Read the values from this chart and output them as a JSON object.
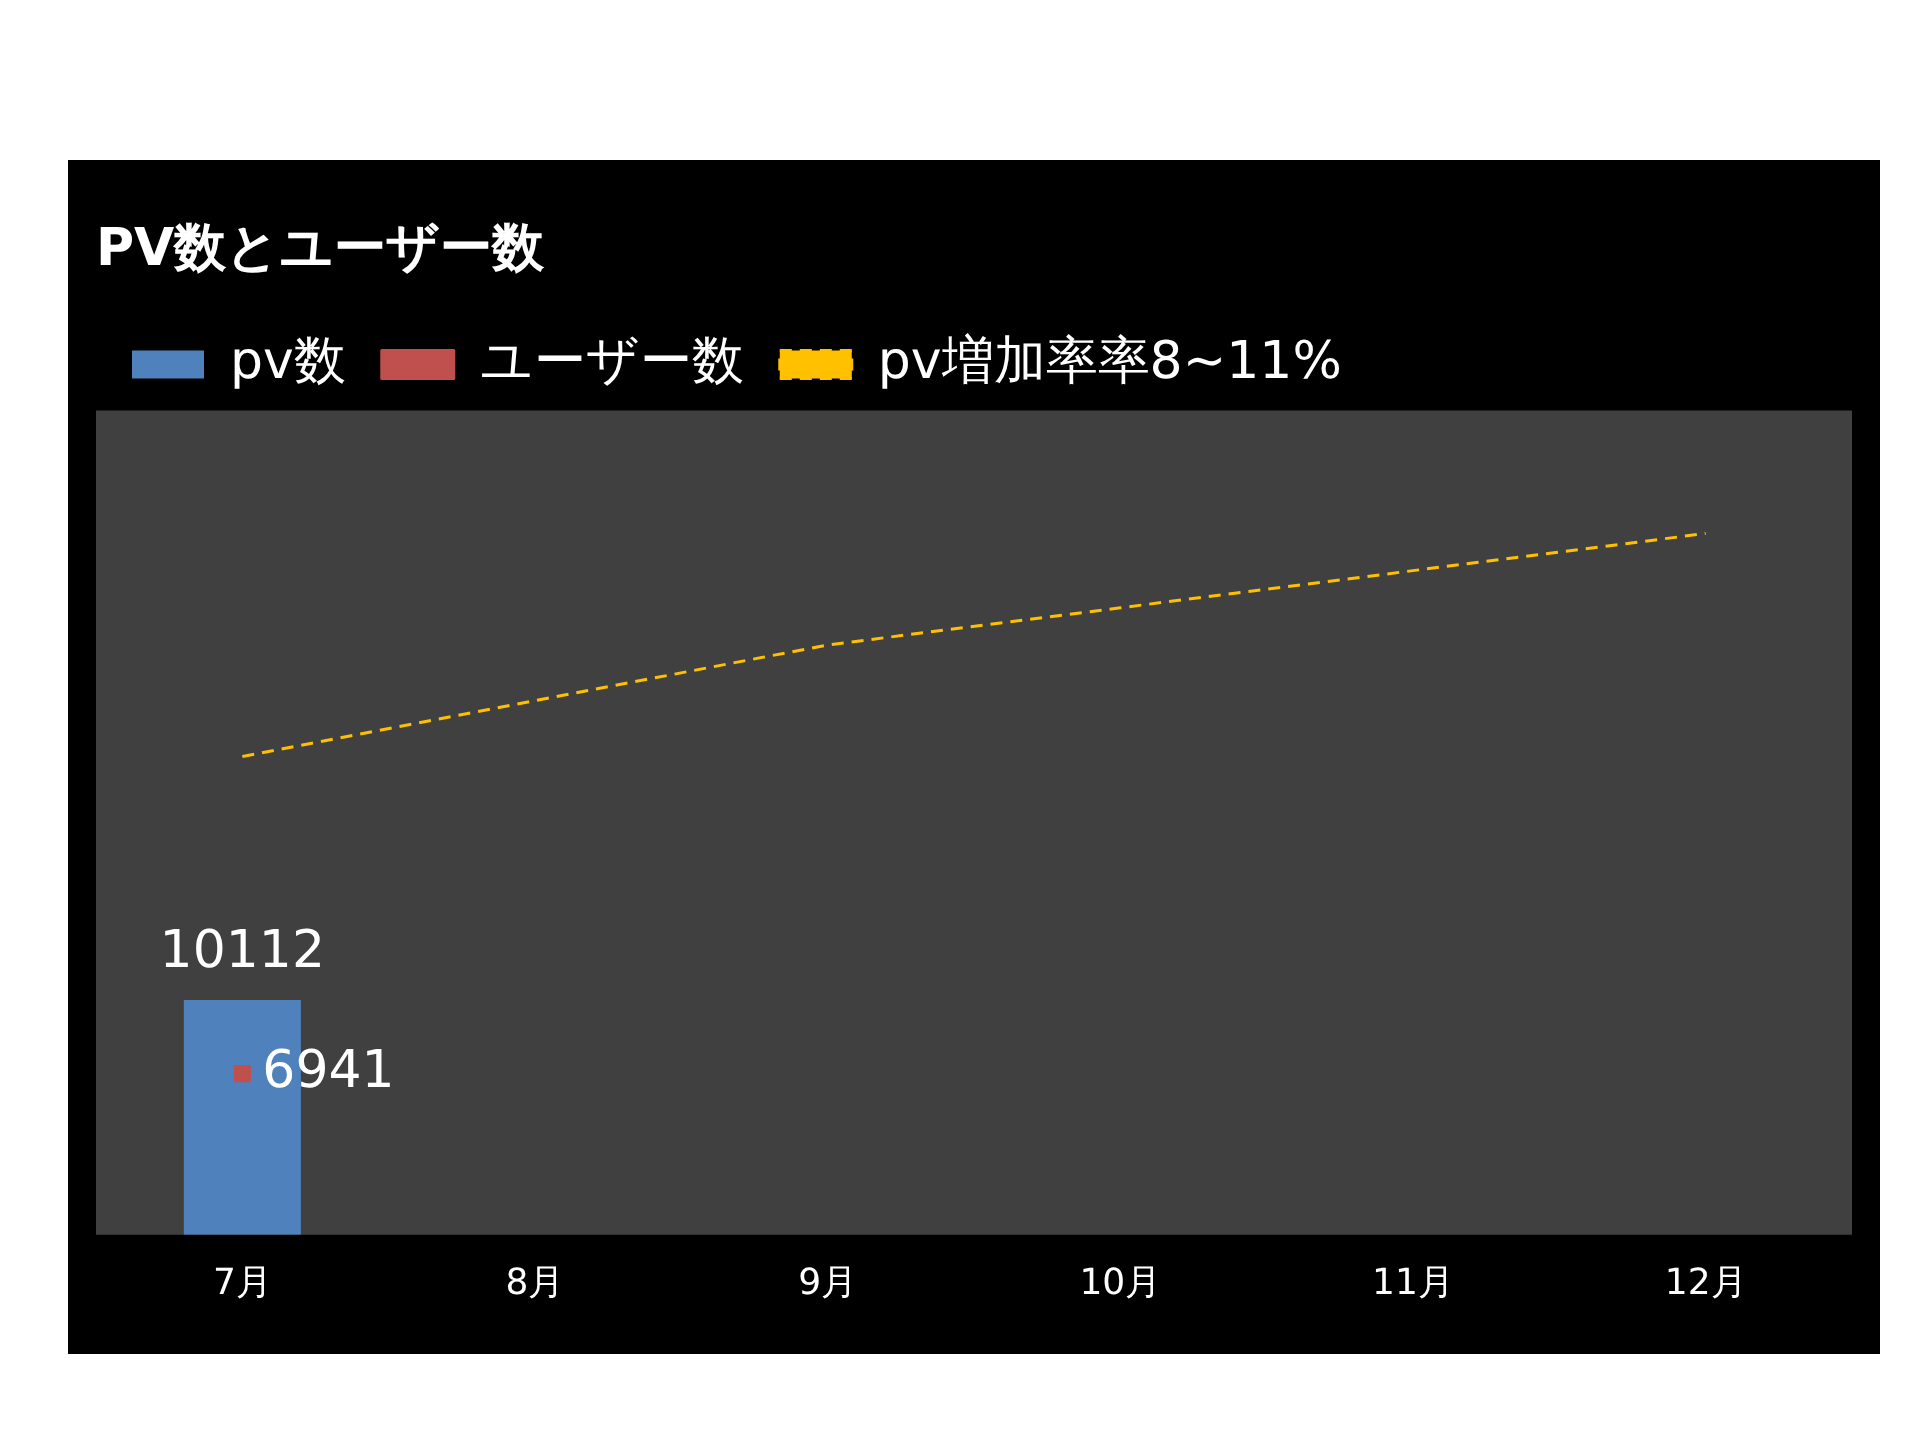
{
  "chart_data": {
    "type": "bar",
    "title": "PV数とユーザー数",
    "categories": [
      "7月",
      "8月",
      "9月",
      "10月",
      "11月",
      "12月"
    ],
    "series": [
      {
        "name": "pv数",
        "color": "#4f81bd",
        "values": [
          10112,
          null,
          null,
          null,
          null,
          null
        ],
        "value_labels": [
          "10112",
          null,
          null,
          null,
          null,
          null
        ]
      },
      {
        "name": "ユーザー数",
        "type": "line",
        "color": "#c0504d",
        "marker": "square",
        "values": [
          6941,
          null,
          null,
          null,
          null,
          null
        ],
        "value_labels": [
          "6941",
          null,
          null,
          null,
          null,
          null
        ]
      },
      {
        "name": "pv増加率率8~11%",
        "type": "line",
        "color": "#ffc000",
        "line_style": "dashed",
        "marker": "none",
        "values": [
          20600,
          23000,
          25400,
          27000,
          28600,
          30200
        ]
      }
    ],
    "ylim": [
      0,
      35500
    ],
    "tick_labels": "x",
    "grid": false,
    "legend": "top left"
  }
}
